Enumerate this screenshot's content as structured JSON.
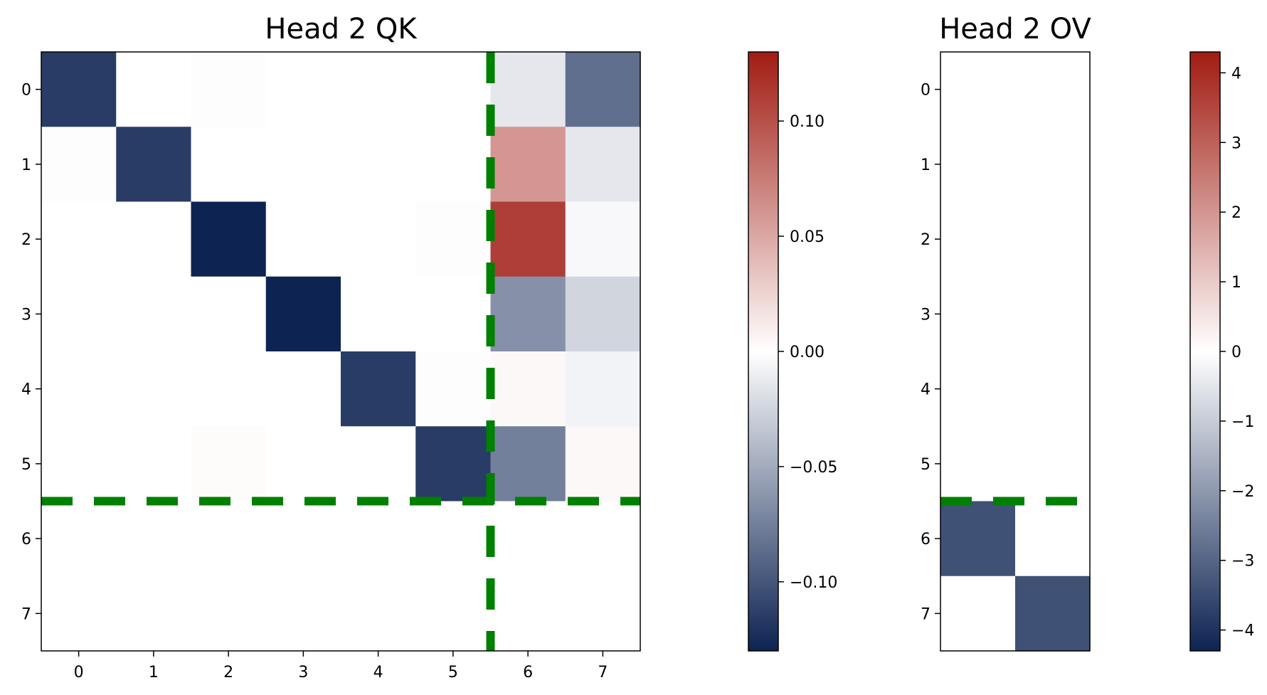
{
  "chart_data": [
    {
      "type": "heatmap",
      "title": "Head 2 QK",
      "rows": 8,
      "cols": 8,
      "x_tick_labels": [
        "0",
        "1",
        "2",
        "3",
        "4",
        "5",
        "6",
        "7"
      ],
      "y_tick_labels": [
        "0",
        "1",
        "2",
        "3",
        "4",
        "5",
        "6",
        "7"
      ],
      "values": [
        [
          -0.115,
          0.0,
          0.001,
          0.0,
          0.0,
          0.0,
          -0.014,
          -0.085
        ],
        [
          0.001,
          -0.115,
          0.0,
          0.0,
          0.0,
          0.0,
          0.06,
          -0.014
        ],
        [
          0.0,
          0.0,
          -0.13,
          0.0,
          0.0,
          0.001,
          0.11,
          -0.004
        ],
        [
          0.0,
          0.0,
          0.0,
          -0.13,
          0.0,
          0.0,
          -0.065,
          -0.025
        ],
        [
          0.0,
          0.0,
          0.0,
          0.0,
          -0.115,
          0.001,
          0.004,
          -0.007
        ],
        [
          0.0,
          0.0,
          0.002,
          0.0,
          0.0,
          -0.115,
          -0.075,
          0.004
        ],
        [
          0.0,
          0.0,
          0.0,
          0.0,
          0.0,
          0.0,
          0.0,
          0.0
        ],
        [
          0.0,
          0.0,
          0.0,
          0.0,
          0.0,
          0.0,
          0.0,
          0.0
        ]
      ],
      "vmin": -0.13,
      "vmax": 0.13,
      "divider_lines": {
        "horizontal_after_row": 5.5,
        "vertical_after_col": 5.5,
        "color": "#008000",
        "style": "dashed"
      },
      "colorbar": {
        "ticks": [
          0.1,
          0.05,
          0.0,
          -0.05,
          -0.1
        ],
        "tick_labels": [
          "0.10",
          "0.05",
          "0.00",
          "−0.05",
          "−0.10"
        ]
      }
    },
    {
      "type": "heatmap",
      "title": "Head 2 OV",
      "rows": 8,
      "cols": 2,
      "x_tick_labels": [],
      "y_tick_labels": [
        "0",
        "1",
        "2",
        "3",
        "4",
        "5",
        "6",
        "7"
      ],
      "values": [
        [
          0,
          0
        ],
        [
          0,
          0
        ],
        [
          0,
          0
        ],
        [
          0,
          0
        ],
        [
          0,
          0
        ],
        [
          0,
          0
        ],
        [
          -3.4,
          0
        ],
        [
          0,
          -3.4
        ]
      ],
      "vmin": -4.3,
      "vmax": 4.3,
      "divider_lines": {
        "horizontal_after_row": 5.5,
        "color": "#008000",
        "style": "dashed"
      },
      "colorbar": {
        "ticks": [
          4,
          3,
          2,
          1,
          0,
          -1,
          -2,
          -3,
          -4
        ],
        "tick_labels": [
          "4",
          "3",
          "2",
          "1",
          "0",
          "−1",
          "−2",
          "−3",
          "−4"
        ]
      }
    }
  ],
  "colormap": {
    "low": "#0d2352",
    "mid": "#ffffff",
    "high": "#a11c12"
  }
}
